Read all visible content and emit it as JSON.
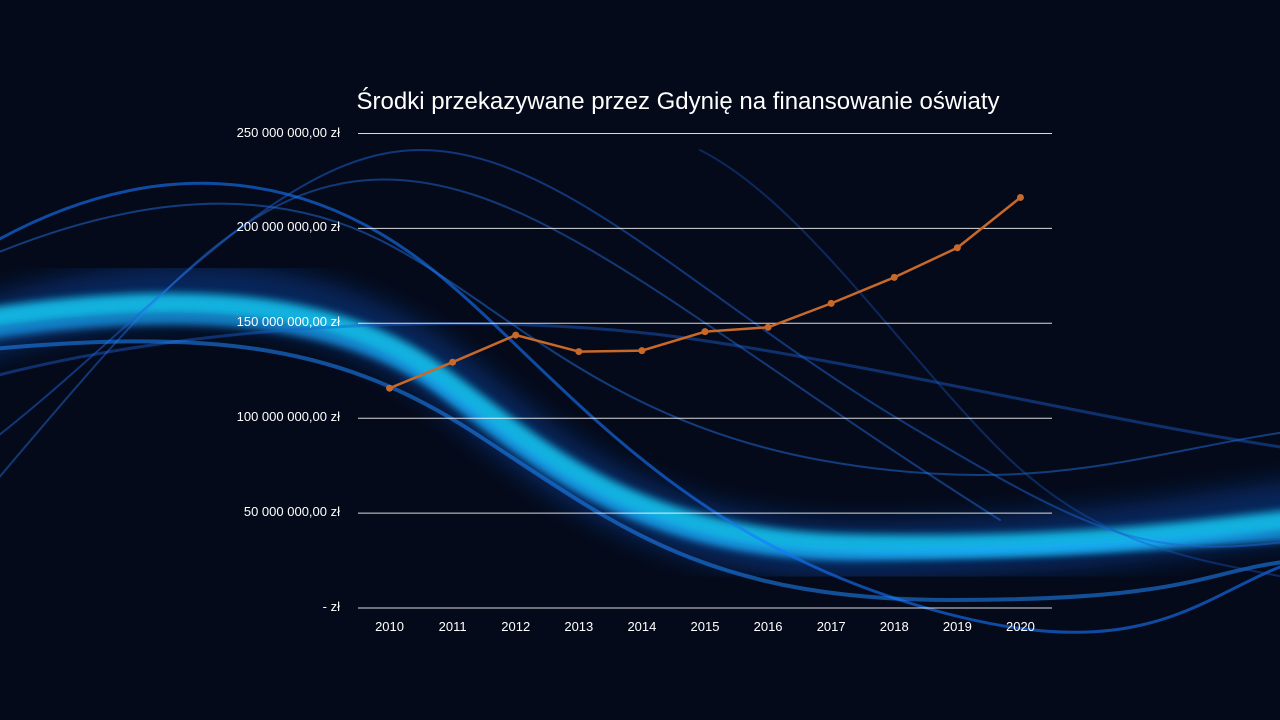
{
  "chart_data": {
    "type": "line",
    "title": "Środki przekazywane przez Gdynię na finansowanie oświaty",
    "categories": [
      "2010",
      "2011",
      "2012",
      "2013",
      "2014",
      "2015",
      "2016",
      "2017",
      "2018",
      "2019",
      "2020"
    ],
    "series": [
      {
        "values": [
          115800000,
          129500000,
          143800000,
          135100000,
          135600000,
          145600000,
          147900000,
          160500000,
          174200000,
          189800000,
          216300000
        ],
        "color": "#c8692a"
      }
    ],
    "ylim": [
      0,
      250000000
    ],
    "yticks": [
      0,
      50000000,
      100000000,
      150000000,
      200000000,
      250000000
    ],
    "ytick_labels": [
      "-   zł",
      "50 000 000,00 zł",
      "100 000 000,00 zł",
      "150 000 000,00 zł",
      "200 000 000,00 zł",
      "250 000 000,00 zł"
    ],
    "grid": true,
    "gridline_color": "#ffffff",
    "background_color": "#050a1a",
    "marker": "circle"
  }
}
